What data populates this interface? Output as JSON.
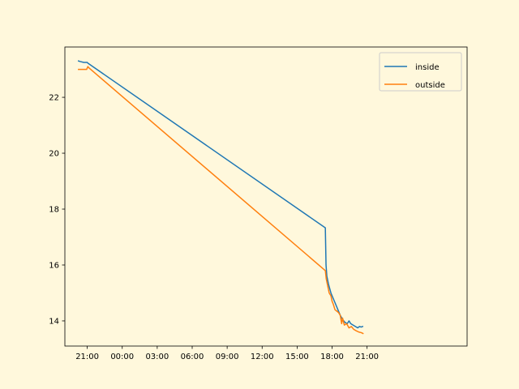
{
  "chart_data": {
    "type": "line",
    "background_color": "#fff8dc",
    "plot_background_color": "#fff8dc",
    "title": "",
    "xlabel": "",
    "ylabel": "",
    "x_unit": "hours from 21:00 on day 1",
    "xlim": [
      -1.92,
      32.58
    ],
    "ylim": [
      13.1,
      23.8
    ],
    "xticks": [
      {
        "value": 0,
        "label": "21:00"
      },
      {
        "value": 3,
        "label": "00:00"
      },
      {
        "value": 6,
        "label": "03:00"
      },
      {
        "value": 9,
        "label": "06:00"
      },
      {
        "value": 12,
        "label": "09:00"
      },
      {
        "value": 15,
        "label": "12:00"
      },
      {
        "value": 18,
        "label": "15:00"
      },
      {
        "value": 21,
        "label": "18:00"
      },
      {
        "value": 24,
        "label": "21:00"
      }
    ],
    "yticks": [
      {
        "value": 14,
        "label": "14"
      },
      {
        "value": 16,
        "label": "16"
      },
      {
        "value": 18,
        "label": "18"
      },
      {
        "value": 20,
        "label": "20"
      },
      {
        "value": 22,
        "label": "22"
      }
    ],
    "legend": {
      "placement": "upper-right"
    },
    "series": [
      {
        "name": "inside",
        "color": "#1f77b4",
        "points": [
          [
            -0.75,
            23.3
          ],
          [
            -0.6,
            23.28
          ],
          [
            -0.3,
            23.25
          ],
          [
            0.0,
            23.25
          ],
          [
            0.06,
            23.22
          ],
          [
            20.42,
            17.33
          ],
          [
            20.48,
            16.0
          ],
          [
            20.55,
            15.6
          ],
          [
            20.7,
            15.3
          ],
          [
            20.9,
            15.0
          ],
          [
            21.1,
            14.8
          ],
          [
            21.3,
            14.6
          ],
          [
            21.5,
            14.4
          ],
          [
            21.7,
            14.2
          ],
          [
            21.9,
            14.05
          ],
          [
            22.1,
            13.95
          ],
          [
            22.3,
            13.9
          ],
          [
            22.45,
            14.0
          ],
          [
            22.6,
            13.9
          ],
          [
            22.8,
            13.85
          ],
          [
            23.0,
            13.8
          ],
          [
            23.2,
            13.75
          ],
          [
            23.35,
            13.8
          ],
          [
            23.5,
            13.78
          ],
          [
            23.62,
            13.8
          ]
        ]
      },
      {
        "name": "outside",
        "color": "#ff7f0e",
        "points": [
          [
            -0.75,
            23.0
          ],
          [
            -0.3,
            23.0
          ],
          [
            -0.05,
            23.0
          ],
          [
            0.05,
            23.1
          ],
          [
            0.15,
            23.05
          ],
          [
            20.42,
            15.8
          ],
          [
            20.5,
            15.5
          ],
          [
            20.6,
            15.3
          ],
          [
            20.75,
            15.0
          ],
          [
            20.9,
            14.9
          ],
          [
            21.0,
            14.7
          ],
          [
            21.1,
            14.6
          ],
          [
            21.25,
            14.4
          ],
          [
            21.4,
            14.35
          ],
          [
            21.55,
            14.3
          ],
          [
            21.7,
            14.2
          ],
          [
            21.82,
            13.9
          ],
          [
            21.9,
            14.1
          ],
          [
            22.05,
            13.85
          ],
          [
            22.25,
            13.9
          ],
          [
            22.45,
            13.75
          ],
          [
            22.65,
            13.8
          ],
          [
            22.85,
            13.7
          ],
          [
            23.05,
            13.65
          ],
          [
            23.3,
            13.6
          ],
          [
            23.5,
            13.58
          ],
          [
            23.65,
            13.55
          ]
        ]
      }
    ]
  }
}
